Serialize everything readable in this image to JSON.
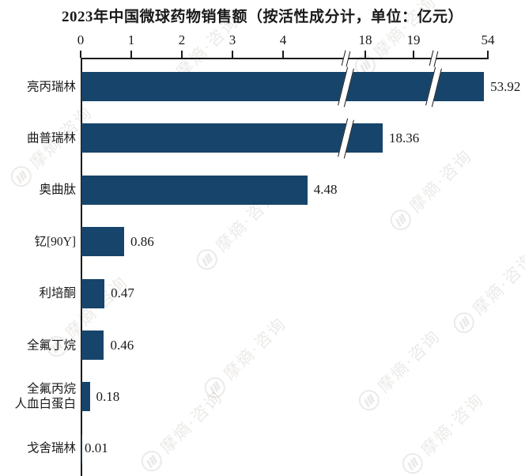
{
  "title": "2023年中国微球药物销售额（按活性成分计，单位：亿元）",
  "watermark": {
    "text": "摩熵·咨询"
  },
  "chart_data": {
    "type": "bar",
    "orientation": "horizontal",
    "title": "2023年中国微球药物销售额（按活性成分计，单位：亿元）",
    "unit": "亿元",
    "categories": [
      "亮丙瑞林",
      "曲普瑞林",
      "奥曲肽",
      "钇[90Y]",
      "利培酮",
      "全氟丁烷",
      "全氟丙烷\n人血白蛋白",
      "戈舍瑞林"
    ],
    "values": [
      53.92,
      18.36,
      4.48,
      0.86,
      0.47,
      0.46,
      0.18,
      0.01
    ],
    "value_labels": [
      "53.92",
      "18.36",
      "4.48",
      "0.86",
      "0.47",
      "0.46",
      "0.18",
      "0.01"
    ],
    "x_ticks": [
      0,
      1,
      2,
      3,
      4,
      18,
      19,
      54
    ],
    "axis_breaks": [
      {
        "after": 4,
        "before": 18
      },
      {
        "after": 19,
        "before": 54
      }
    ],
    "grid": false,
    "legend": false,
    "bar_color": "#17446A",
    "axis_color": "#1A1A1A",
    "background_color": "#FFFFFF"
  }
}
